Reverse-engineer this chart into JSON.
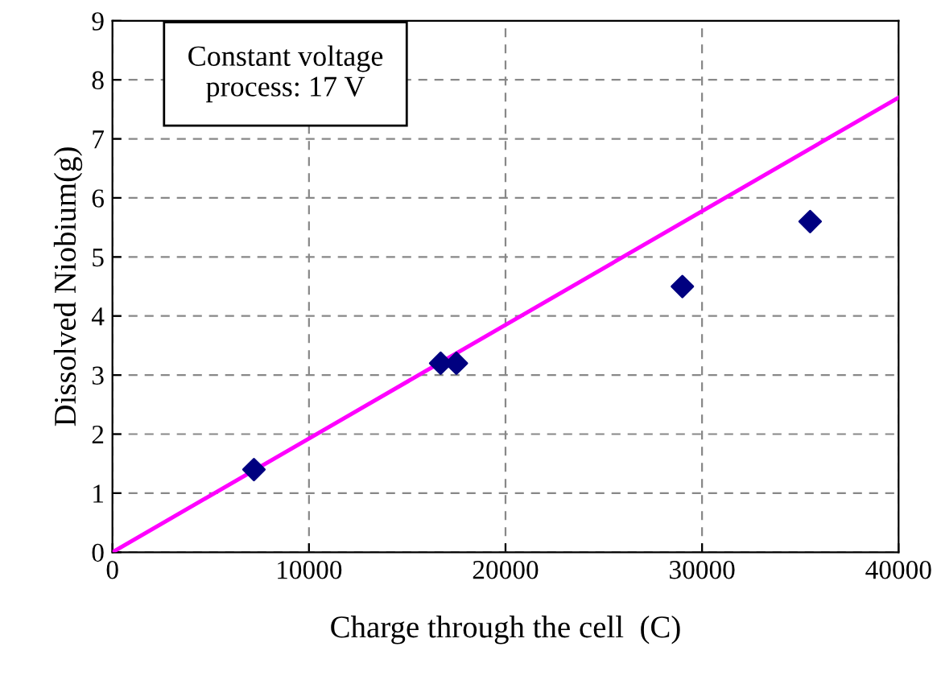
{
  "chart_data": {
    "type": "scatter",
    "xlabel": "Charge through the cell  (C)",
    "ylabel": "Dissolved Niobium(g)",
    "annotations": [
      "Constant voltage\nprocess: 17 V"
    ],
    "series": [
      {
        "color": "#000080",
        "marker": "diamond",
        "x": [
          7200,
          16700,
          17500,
          29000,
          35500
        ],
        "values": [
          1.4,
          3.2,
          3.2,
          4.5,
          5.6
        ]
      },
      {
        "type": "line",
        "color": "#ff00ff",
        "line_style": "solid",
        "x": [
          0,
          40000
        ],
        "values": [
          0,
          7.7
        ]
      }
    ],
    "xlim": [
      0,
      40000
    ],
    "xticks": [
      0,
      10000,
      20000,
      30000,
      40000
    ],
    "ylim": [
      0,
      9
    ],
    "yticks": [
      0,
      1,
      2,
      3,
      4,
      5,
      6,
      7,
      8,
      9
    ],
    "grid": true,
    "legend": false
  }
}
